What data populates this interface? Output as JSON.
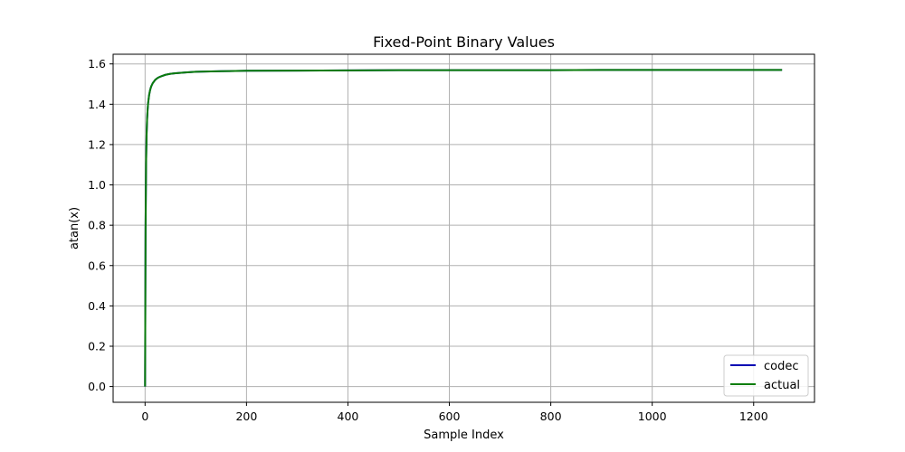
{
  "chart_data": {
    "type": "line",
    "title": "Fixed-Point Binary Values",
    "xlabel": "Sample Index",
    "ylabel": "atan(x)",
    "xlim": [
      -63,
      1320
    ],
    "ylim": [
      -0.078,
      1.648
    ],
    "xticks": [
      0,
      200,
      400,
      600,
      800,
      1000,
      1200
    ],
    "yticks": [
      0.0,
      0.2,
      0.4,
      0.6,
      0.8,
      1.0,
      1.2,
      1.4,
      1.6
    ],
    "xtick_labels": [
      "0",
      "200",
      "400",
      "600",
      "800",
      "1000",
      "1200"
    ],
    "ytick_labels": [
      "0.0",
      "0.2",
      "0.4",
      "0.6",
      "0.8",
      "1.0",
      "1.2",
      "1.4",
      "1.6"
    ],
    "grid": true,
    "legend_position": "lower-right",
    "x": [
      0,
      1,
      2,
      3,
      4,
      5,
      6,
      8,
      10,
      12,
      15,
      20,
      25,
      30,
      40,
      50,
      60,
      80,
      100,
      150,
      200,
      300,
      400,
      500,
      600,
      700,
      800,
      900,
      1000,
      1100,
      1200,
      1256
    ],
    "series": [
      {
        "name": "codec",
        "color": "#0000b3",
        "values": [
          0.0,
          0.785,
          1.107,
          1.249,
          1.326,
          1.373,
          1.406,
          1.446,
          1.471,
          1.488,
          1.504,
          1.521,
          1.531,
          1.537,
          1.546,
          1.551,
          1.554,
          1.558,
          1.561,
          1.564,
          1.566,
          1.567,
          1.568,
          1.569,
          1.569,
          1.569,
          1.569,
          1.57,
          1.57,
          1.57,
          1.57,
          1.57
        ]
      },
      {
        "name": "actual",
        "color": "#0a7d0a",
        "values": [
          0.0,
          0.785,
          1.107,
          1.249,
          1.326,
          1.373,
          1.406,
          1.446,
          1.471,
          1.488,
          1.504,
          1.521,
          1.531,
          1.537,
          1.546,
          1.551,
          1.554,
          1.558,
          1.561,
          1.564,
          1.566,
          1.567,
          1.568,
          1.569,
          1.569,
          1.569,
          1.569,
          1.57,
          1.57,
          1.57,
          1.57,
          1.57
        ]
      }
    ]
  }
}
